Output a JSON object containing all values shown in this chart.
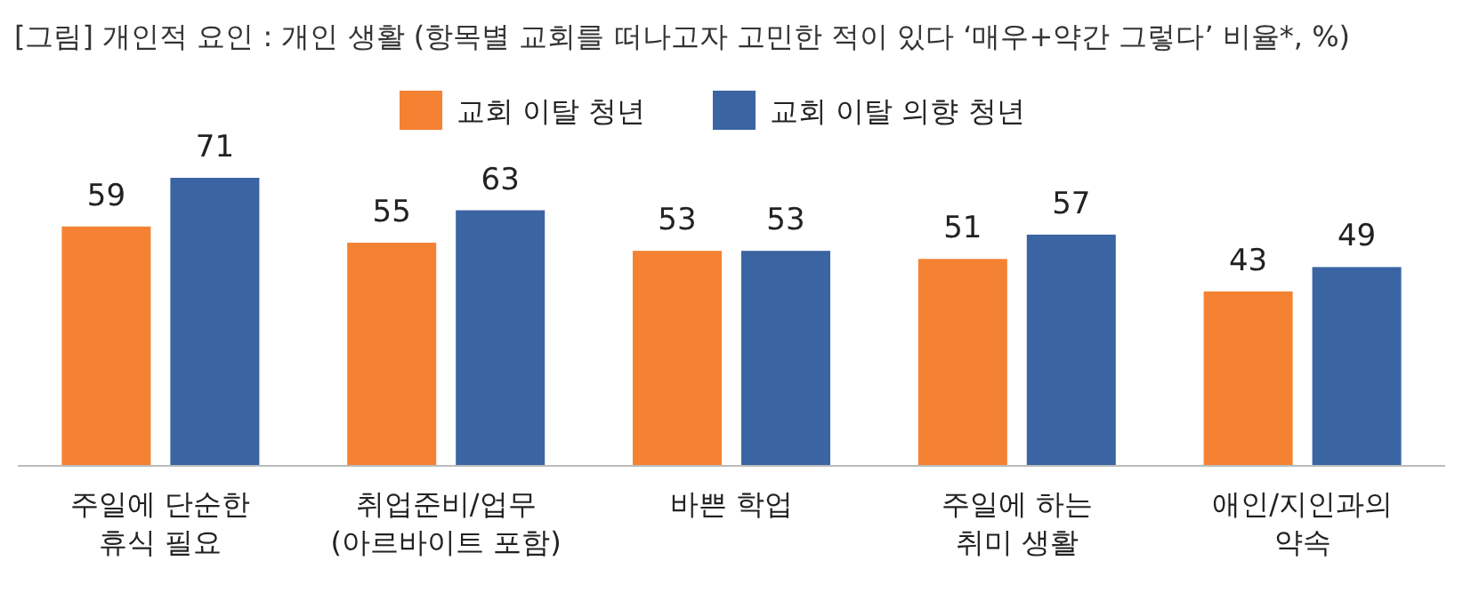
{
  "chart_data": {
    "type": "bar",
    "title": "[그림] 개인적 요인 : 개인 생활 (항목별 교회를 떠나고자 고민한 적이 있다 ‘매우+약간 그렇다’ 비율*, %)",
    "categories": [
      "주일에 단순한\n휴식 필요",
      "취업준비/업무\n(아르바이트 포함)",
      "바쁜 학업",
      "주일에 하는\n취미 생활",
      "애인/지인과의\n약속"
    ],
    "series": [
      {
        "name": "교회 이탈 청년",
        "color": "#f58233",
        "values": [
          59,
          55,
          53,
          51,
          43
        ]
      },
      {
        "name": "교회 이탈 의향 청년",
        "color": "#3b64a2",
        "values": [
          71,
          63,
          53,
          57,
          49
        ]
      }
    ],
    "data_labels": true,
    "legend": "top"
  }
}
